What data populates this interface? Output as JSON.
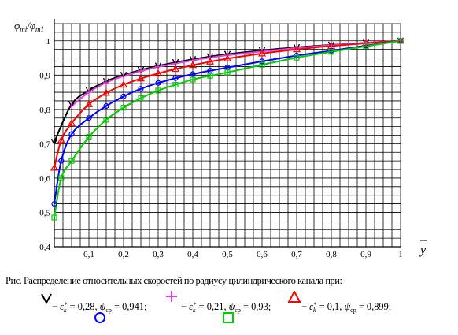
{
  "chart_data": {
    "type": "line",
    "ylabel": "φmi/φm1",
    "xlabel": "y",
    "xlim": [
      0,
      1
    ],
    "ylim": [
      0.4,
      1.05
    ],
    "x_ticks": [
      "0,1",
      "0,2",
      "0,3",
      "0,4",
      "0,5",
      "0,6",
      "0,7",
      "0,8",
      "0,9",
      "1"
    ],
    "y_ticks": [
      "0,4",
      "0,5",
      "0,6",
      "0,7",
      "0,8",
      "0,9",
      "1"
    ],
    "grid": true,
    "series": [
      {
        "marker": "v",
        "color": "#000000",
        "x": [
          0.0,
          0.05,
          0.1,
          0.15,
          0.2,
          0.25,
          0.3,
          0.35,
          0.4,
          0.45,
          0.5,
          0.6,
          0.7,
          0.8,
          0.9,
          1.0
        ],
        "y": [
          0.705,
          0.815,
          0.855,
          0.882,
          0.9,
          0.915,
          0.927,
          0.937,
          0.946,
          0.954,
          0.961,
          0.972,
          0.981,
          0.988,
          0.994,
          1.0
        ]
      },
      {
        "marker": "+",
        "color": "#e040e0",
        "x": [
          0.05,
          0.1,
          0.15,
          0.2,
          0.25,
          0.3,
          0.35,
          0.4,
          0.45,
          0.5,
          0.6,
          0.7,
          0.8,
          0.9,
          1.0
        ],
        "y": [
          0.81,
          0.85,
          0.878,
          0.897,
          0.912,
          0.924,
          0.934,
          0.943,
          0.951,
          0.958,
          0.969,
          0.979,
          0.987,
          0.994,
          1.0
        ]
      },
      {
        "marker": "^",
        "color": "#ff0000",
        "x": [
          0.0,
          0.02,
          0.05,
          0.1,
          0.15,
          0.2,
          0.25,
          0.3,
          0.35,
          0.4,
          0.45,
          0.5,
          0.6,
          0.7,
          0.8,
          0.9,
          1.0
        ],
        "y": [
          0.63,
          0.71,
          0.76,
          0.815,
          0.848,
          0.872,
          0.89,
          0.905,
          0.918,
          0.929,
          0.939,
          0.948,
          0.963,
          0.975,
          0.985,
          0.993,
          1.0
        ]
      },
      {
        "marker": "o",
        "color": "#0000ff",
        "x": [
          0.0,
          0.02,
          0.05,
          0.1,
          0.15,
          0.2,
          0.25,
          0.3,
          0.35,
          0.4,
          0.45,
          0.5,
          0.6,
          0.7,
          0.8,
          0.9,
          1.0
        ],
        "y": [
          0.525,
          0.65,
          0.728,
          0.775,
          0.81,
          0.838,
          0.86,
          0.877,
          0.891,
          0.903,
          0.913,
          0.922,
          0.94,
          0.957,
          0.971,
          0.986,
          1.0
        ]
      },
      {
        "marker": "s",
        "color": "#00cc00",
        "x": [
          0.0,
          0.02,
          0.05,
          0.1,
          0.15,
          0.2,
          0.25,
          0.3,
          0.35,
          0.4,
          0.45,
          0.5,
          0.6,
          0.7,
          0.8,
          0.9,
          1.0
        ],
        "y": [
          0.485,
          0.6,
          0.65,
          0.72,
          0.77,
          0.805,
          0.833,
          0.855,
          0.872,
          0.887,
          0.898,
          0.908,
          0.93,
          0.951,
          0.968,
          0.984,
          1.0
        ]
      }
    ]
  },
  "caption": "Рис. Распределение относительных скоростей по радиусу цилиндрического канала при:",
  "legend": [
    {
      "eps": "0,28",
      "psi": "0,941"
    },
    {
      "eps": "0,21",
      "psi": "0,93"
    },
    {
      "eps": "0,1",
      "psi": "0,899"
    }
  ],
  "legend_symbols": {
    "dash": "−",
    "eps_sym": "ε",
    "eps_sub": "k",
    "eps_sup": "*",
    "psi_sym": "ψ",
    "psi_sub": "ср",
    "sep": ";"
  }
}
